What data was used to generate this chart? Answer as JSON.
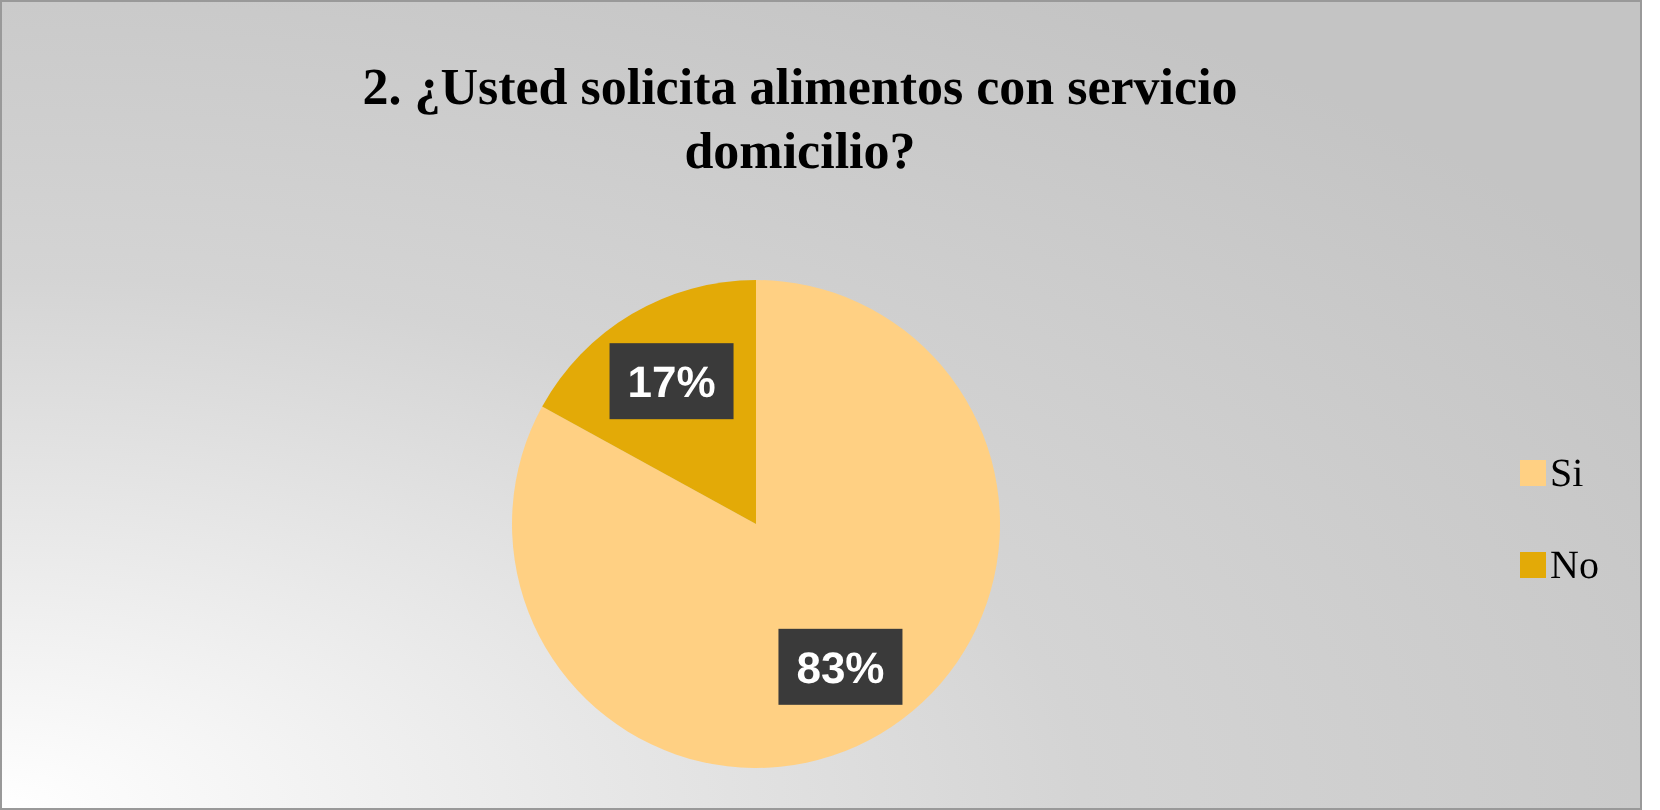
{
  "chart_data": {
    "type": "pie",
    "title": "2. ¿Usted solicita alimentos con servicio domicilio?",
    "categories": [
      "Si",
      "No"
    ],
    "values": [
      83,
      17
    ],
    "colors": [
      "#ffd083",
      "#e3aa07"
    ],
    "value_labels": [
      "83%",
      "17%"
    ],
    "legend": "right"
  }
}
